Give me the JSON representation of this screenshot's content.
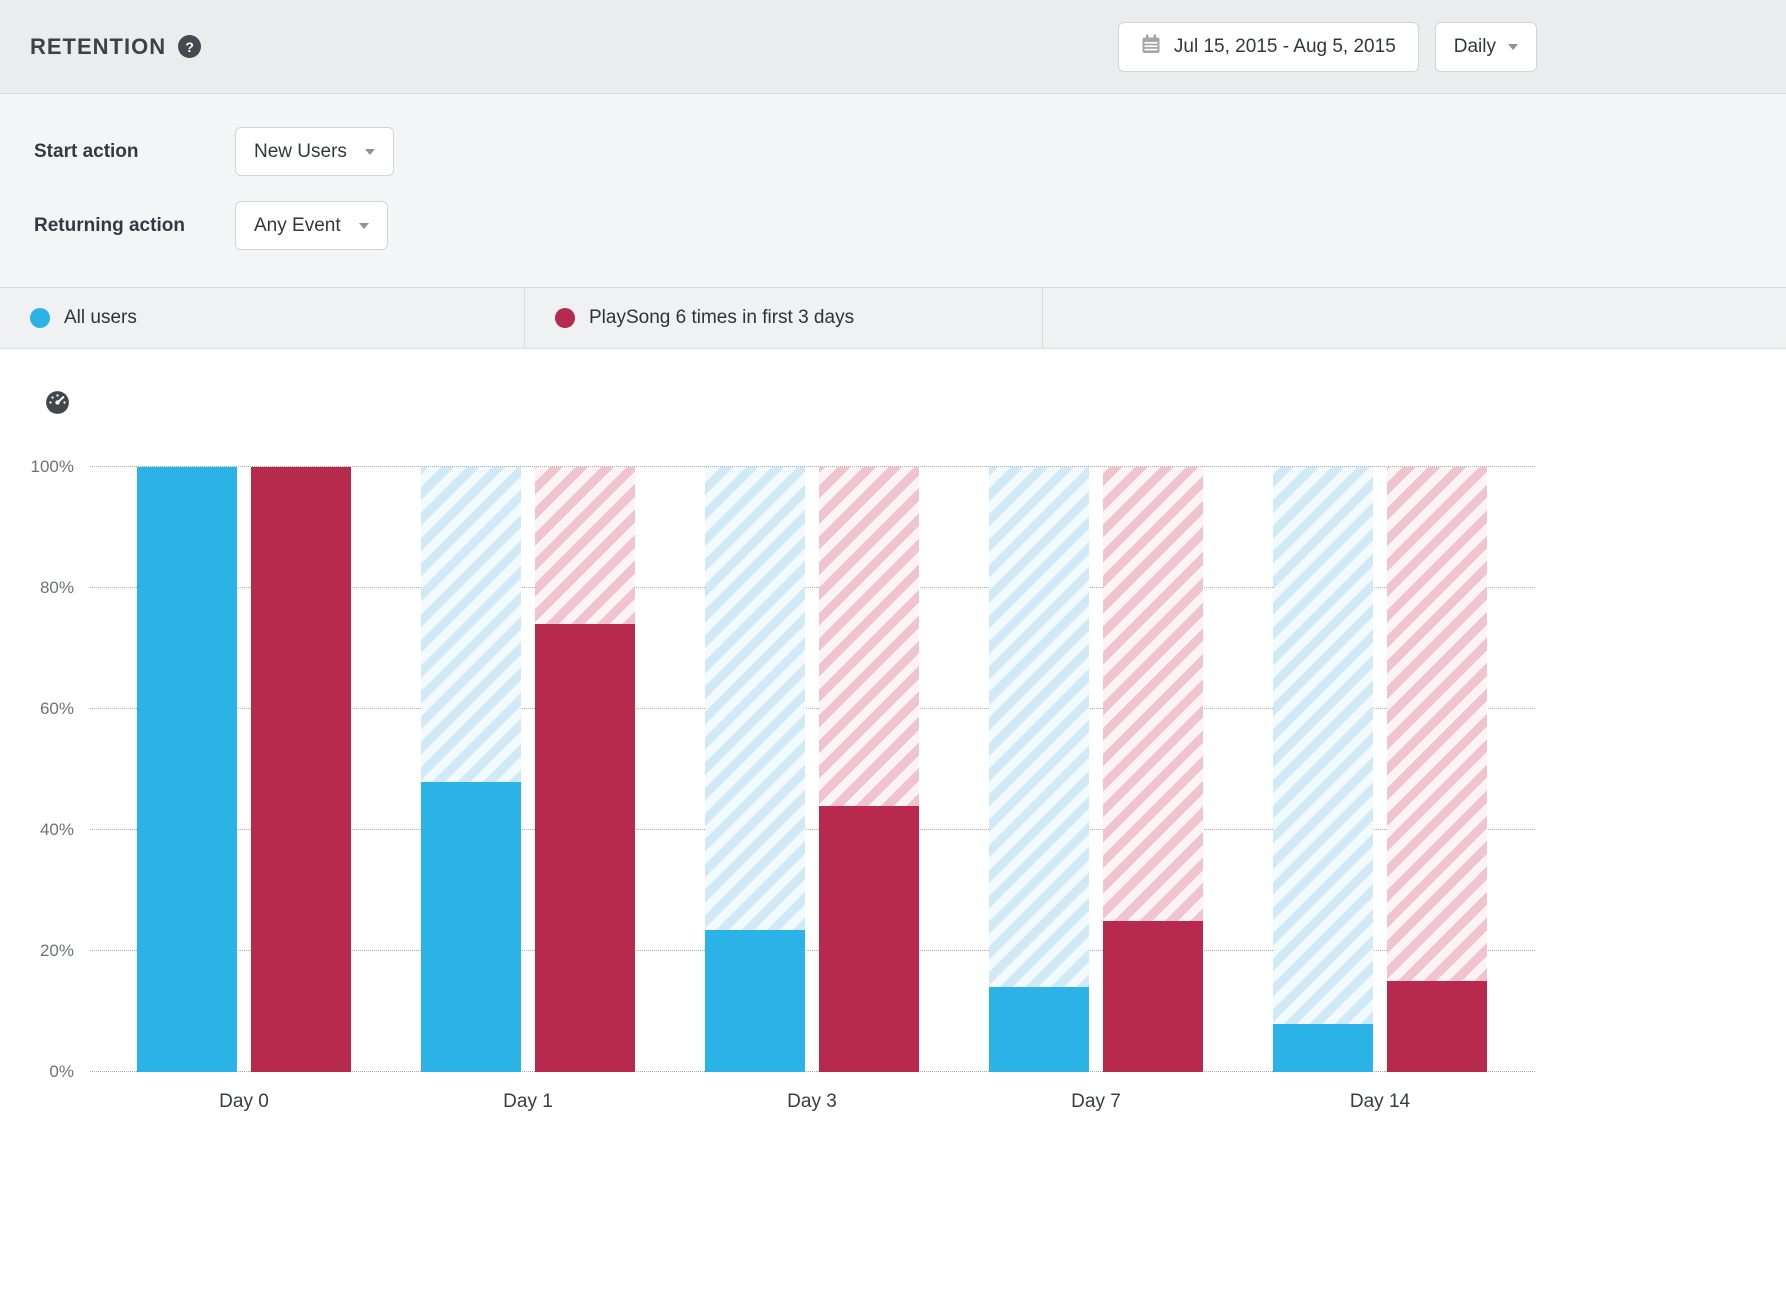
{
  "header": {
    "title": "RETENTION",
    "help_glyph": "?",
    "date_range": "Jul 15, 2015  -  Aug 5, 2015",
    "interval_label": "Daily"
  },
  "filters": {
    "start_action": {
      "label": "Start action",
      "value": "New Users"
    },
    "returning_action": {
      "label": "Returning action",
      "value": "Any Event"
    }
  },
  "legend": [
    {
      "label": "All users",
      "color": "#2bb3e8"
    },
    {
      "label": "PlaySong 6 times in first 3 days",
      "color": "#b7294d"
    }
  ],
  "icons": {
    "help": "question-mark-in-circle",
    "calendar": "calendar-icon",
    "interval_caret": "chevron-down-icon",
    "select_caret": "chevron-down-icon",
    "gauge": "gauge-icon"
  },
  "chart_data": {
    "type": "bar",
    "categories": [
      "Day 0",
      "Day 1",
      "Day 3",
      "Day 7",
      "Day 14"
    ],
    "series": [
      {
        "name": "All users",
        "color": "#2bb3e8",
        "hatch_stripe": "#cfe9f7",
        "hatch_bg": "#f2fafd",
        "values": [
          100,
          48,
          23.5,
          14,
          8
        ]
      },
      {
        "name": "PlaySong 6 times in first 3 days",
        "color": "#b7294d",
        "hatch_stripe": "#f0c3d1",
        "hatch_bg": "#fcf3f6",
        "values": [
          100,
          74,
          44,
          25,
          15
        ]
      }
    ],
    "yticks": [
      "0%",
      "20%",
      "40%",
      "60%",
      "80%",
      "100%"
    ],
    "ylim": [
      0,
      100
    ],
    "grid": "dotted horizontal",
    "legend_position": "top",
    "remainder_note": "hatched area above each solid bar fills to 100%"
  }
}
